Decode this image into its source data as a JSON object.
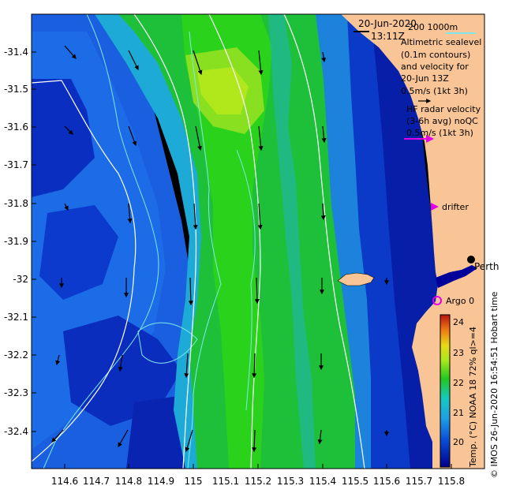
{
  "header": {
    "date": "20-Jun-2020",
    "time": "13:11Z",
    "contour_depths": "200  1000m"
  },
  "legend": {
    "altimetry": [
      "Altimetric sealevel",
      "(0.1m contours)",
      "and velocity for",
      "20-Jun 13Z",
      "0.5m/s (1kt 3h)"
    ],
    "hf_radar": [
      "HF radar velocity",
      "(3-6h avg) noQC",
      "0.5m/s (1kt 3h)"
    ],
    "drifter": "drifter",
    "argo": "Argo 0"
  },
  "places": {
    "perth": "Perth"
  },
  "colorbar": {
    "ticks": [
      "24",
      "23",
      "22",
      "21",
      "20"
    ],
    "label": "Temp. (°C) NOAA 18 72% ql>=4"
  },
  "credit": "© IMOS 26-Jun-2020 16:54:51 Hobart time",
  "axes": {
    "y_ticks": [
      "-31.4",
      "-31.5",
      "-31.6",
      "-31.7",
      "-31.8",
      "-31.9",
      "-32",
      "-32.1",
      "-32.2",
      "-32.3",
      "-32.4"
    ],
    "x_ticks": [
      "114.6",
      "114.7",
      "114.8",
      "114.9",
      "115",
      "115.1",
      "115.2",
      "115.3",
      "115.4",
      "115.5",
      "115.6",
      "115.7",
      "115.8"
    ]
  },
  "colors": {
    "land": "#f9c596",
    "ocean_deep": "#00009a",
    "sea_mid": "#1e6fe6",
    "sea_warm": "#22c81e",
    "current_arrow": "#000000",
    "hf_arrow": "#e400e4",
    "contour": "#ffffff",
    "bathymetry": "#7fe8ee"
  }
}
